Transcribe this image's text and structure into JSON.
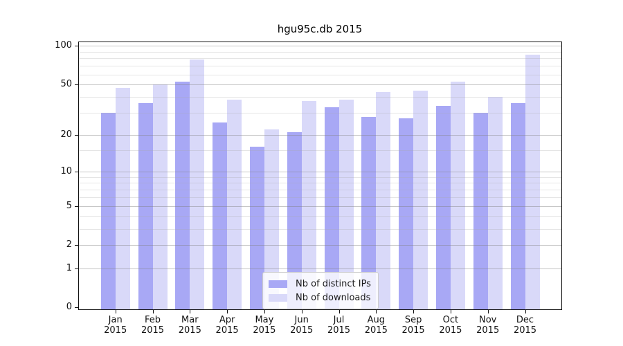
{
  "title": "hgu95c.db 2015",
  "chart_data": {
    "type": "bar",
    "title": "hgu95c.db 2015",
    "yscale": "log1p",
    "categories": [
      "Jan",
      "Feb",
      "Mar",
      "Apr",
      "May",
      "Jun",
      "Jul",
      "Aug",
      "Sep",
      "Oct",
      "Nov",
      "Dec"
    ],
    "category_year": "2015",
    "series": [
      {
        "name": "Nb of distinct IPs",
        "color": "#a8a8f5",
        "values": [
          30,
          36,
          53,
          25,
          16,
          21,
          33,
          28,
          27,
          34,
          30,
          36
        ]
      },
      {
        "name": "Nb of downloads",
        "color": "#d9d9f9",
        "values": [
          47,
          50,
          78,
          38,
          22,
          37,
          38,
          44,
          45,
          53,
          40,
          86
        ]
      }
    ],
    "yticks": [
      0,
      1,
      2,
      5,
      10,
      20,
      50,
      100
    ],
    "minor_yticks": [
      3,
      4,
      6,
      7,
      8,
      9,
      15,
      30,
      40,
      60,
      70,
      80,
      90
    ],
    "ylim": [
      0,
      107
    ],
    "xlabel": "",
    "ylabel": "",
    "grid": true,
    "legend_position": "bottom-center"
  },
  "colors": {
    "series1": "#a8a8f5",
    "series2": "#d9d9f9",
    "major_grid": "rgba(128,128,128,0.45)",
    "minor_grid": "rgba(170,170,170,0.30)",
    "spine": "#111111",
    "text": "#111111",
    "legend_border": "#cccccc",
    "legend_background": "rgba(255,255,255,0.8)"
  }
}
